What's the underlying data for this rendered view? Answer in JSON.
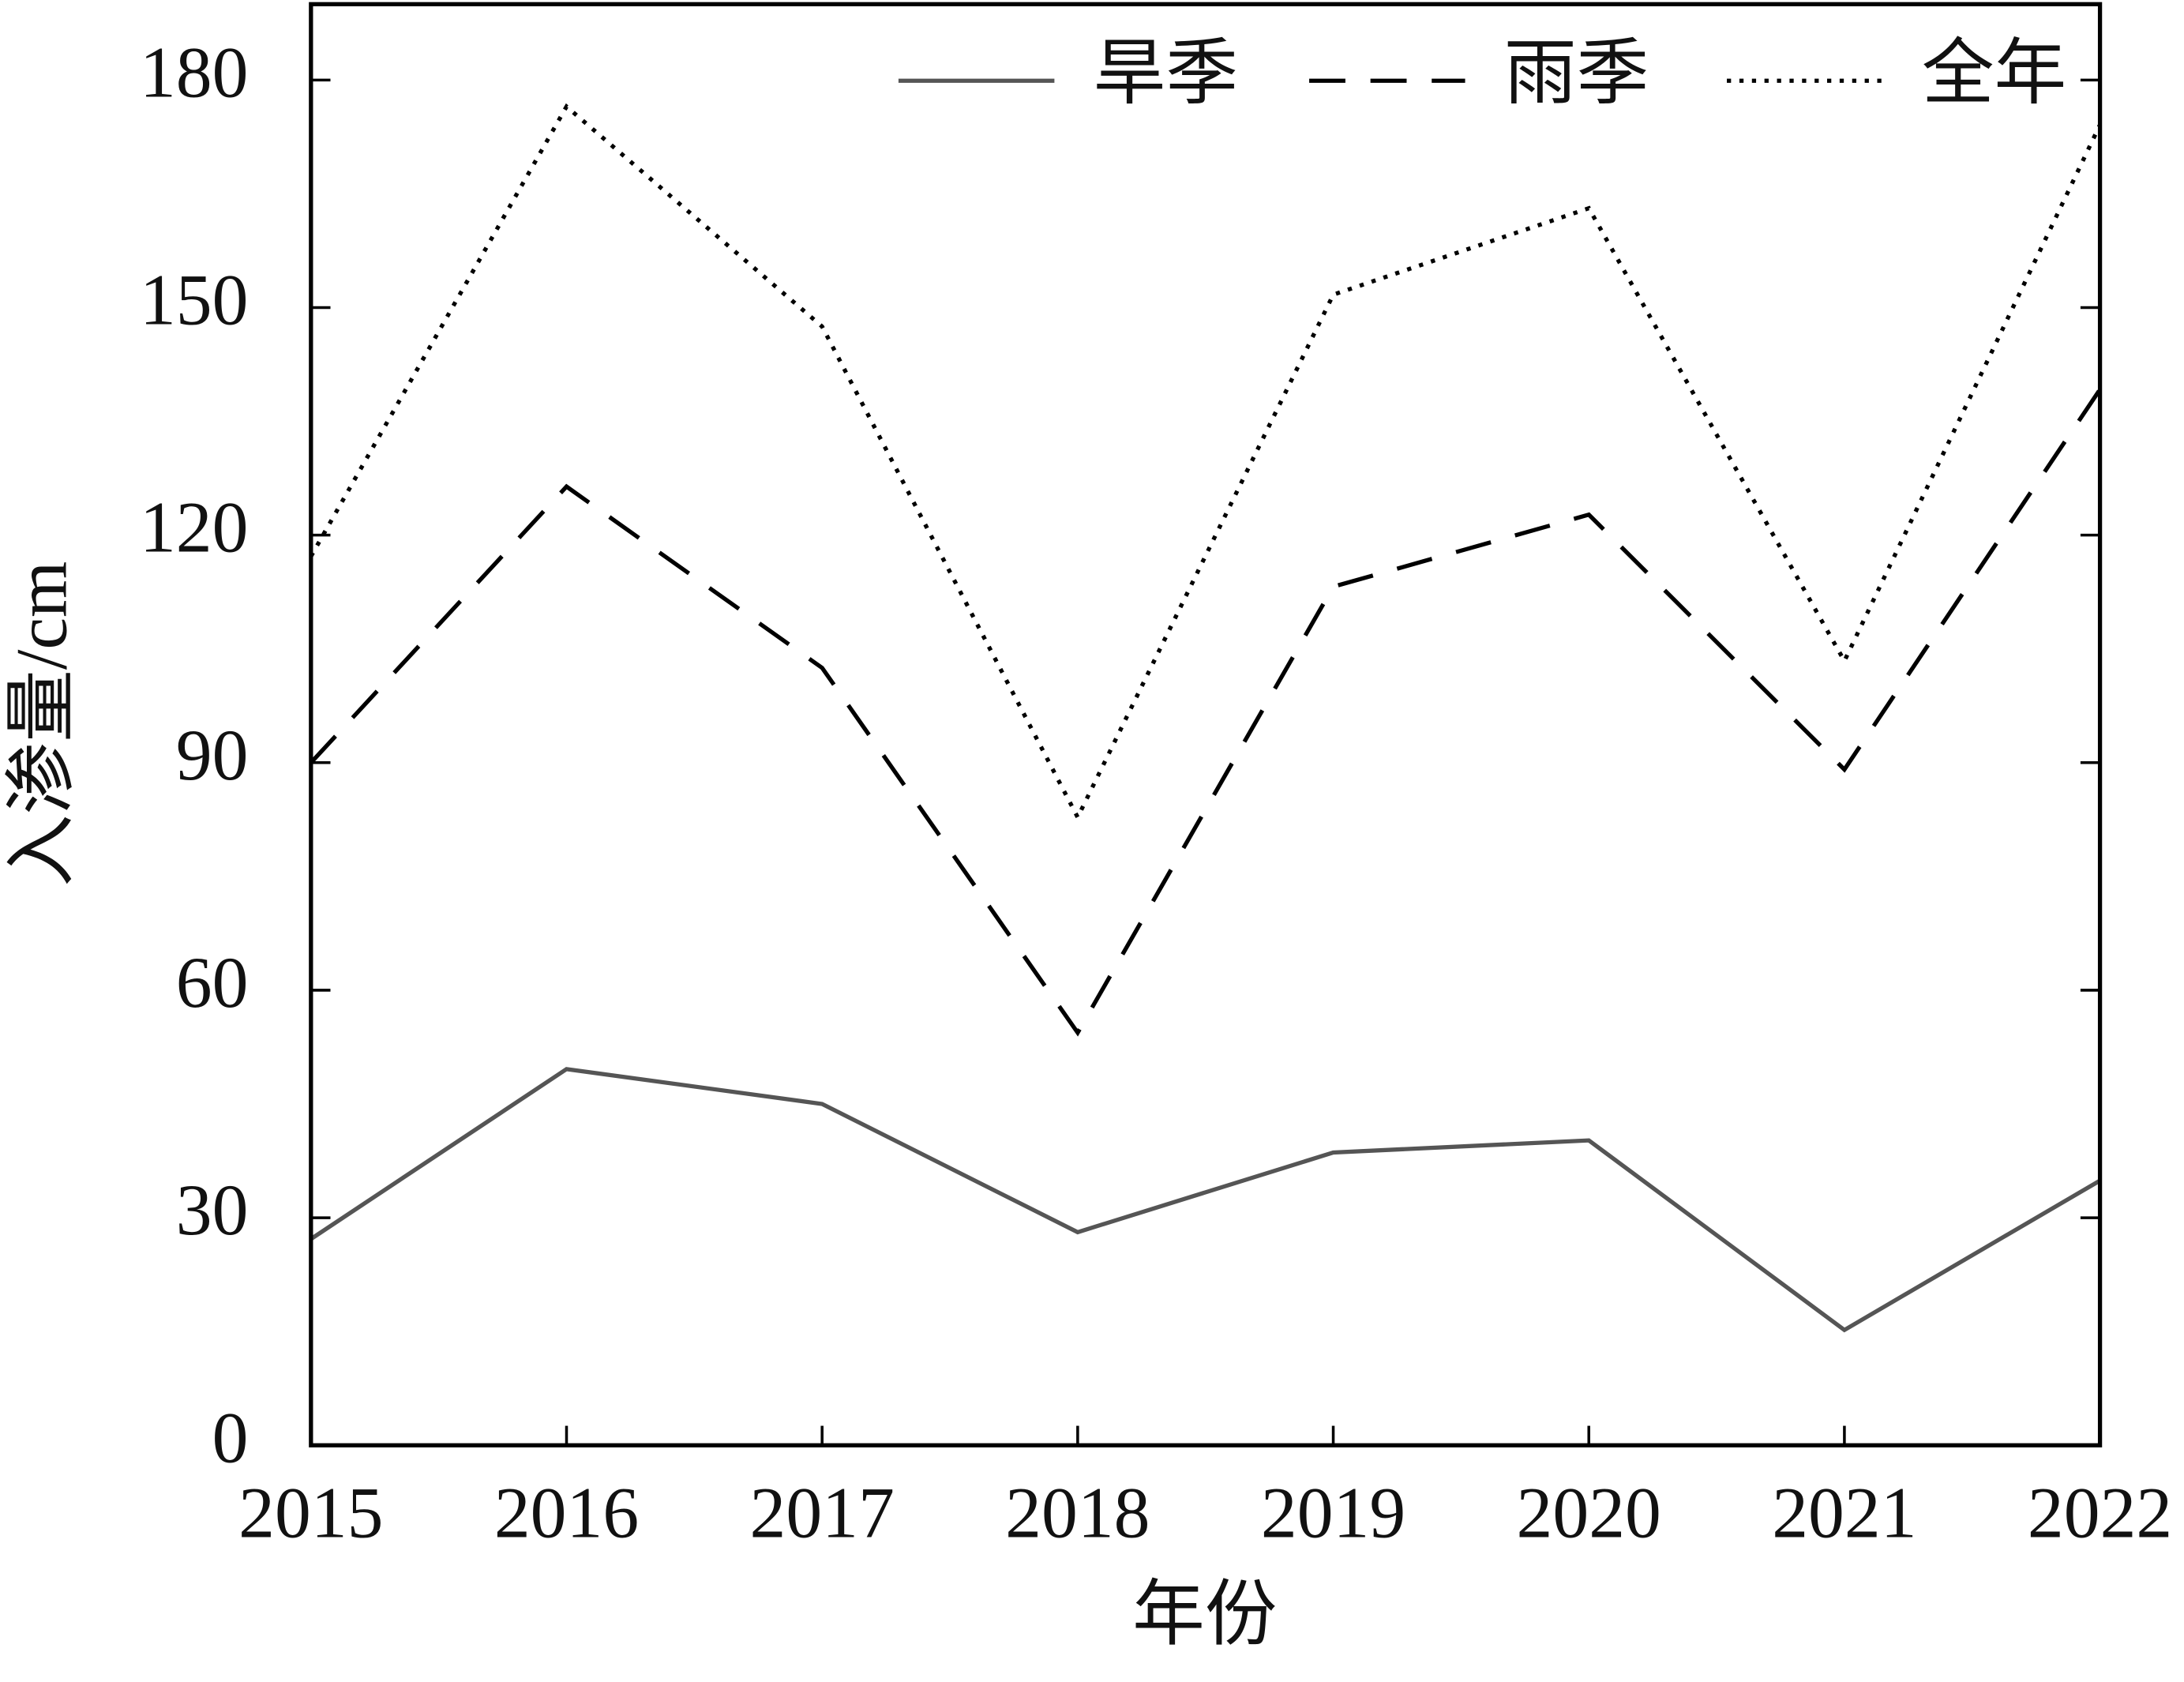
{
  "chart_data": {
    "type": "line",
    "x_label": "年份",
    "y_label": "入渗量/cm",
    "x": [
      2015,
      2016,
      2017,
      2018,
      2019,
      2020,
      2021,
      2022
    ],
    "series": [
      {
        "name": "旱季",
        "color": "#555555",
        "dash": "solid",
        "values": [
          27.2,
          49.6,
          45.0,
          28.1,
          38.6,
          40.2,
          15.2,
          34.9
        ]
      },
      {
        "name": "雨季",
        "color": "#000000",
        "dash": "dashed",
        "values": [
          90.0,
          126.4,
          102.5,
          54.4,
          113.2,
          122.7,
          89.1,
          139.2
        ]
      },
      {
        "name": "全年",
        "color": "#000000",
        "dash": "dotted",
        "values": [
          117.2,
          176.5,
          147.5,
          82.8,
          151.7,
          163.1,
          103.4,
          174.1
        ]
      }
    ],
    "xlim": [
      2015,
      2022
    ],
    "xticks": [
      2015,
      2016,
      2017,
      2018,
      2019,
      2020,
      2021,
      2022
    ],
    "ylim": [
      0,
      190
    ],
    "yticks": [
      0,
      30,
      60,
      90,
      120,
      150,
      180
    ],
    "grid": false,
    "legend": "top-right"
  }
}
